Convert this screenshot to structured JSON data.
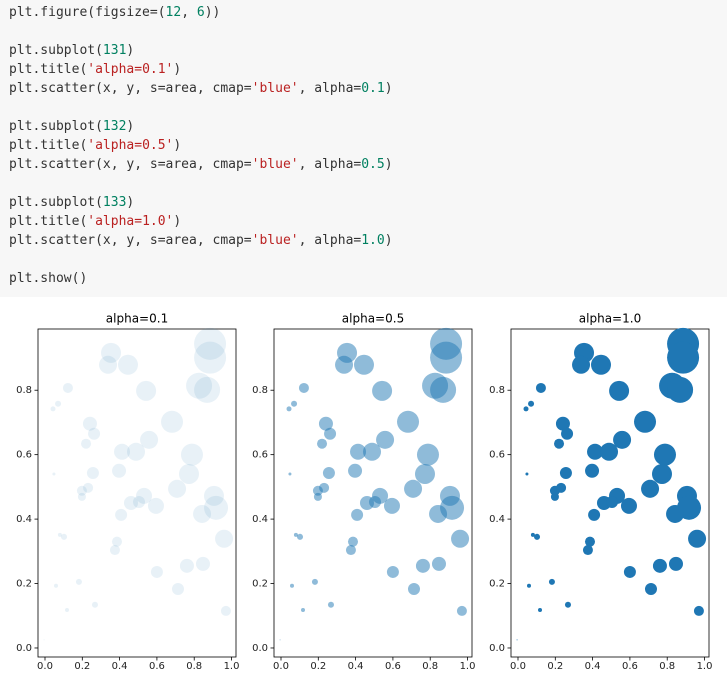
{
  "code": {
    "blocks": [
      [
        "plt.figure(figsize=(12, 6))"
      ],
      [
        "plt.subplot(131)",
        "plt.title('alpha=0.1')",
        "plt.scatter(x, y, s=area, cmap='blue', alpha=0.1)"
      ],
      [
        "plt.subplot(132)",
        "plt.title('alpha=0.5')",
        "plt.scatter(x, y, s=area, cmap='blue', alpha=0.5)"
      ],
      [
        "plt.subplot(133)",
        "plt.title('alpha=1.0')",
        "plt.scatter(x, y, s=area, cmap='blue', alpha=1.0)"
      ],
      [
        "plt.show()"
      ]
    ]
  },
  "chart_data": [
    {
      "type": "scatter",
      "title": "alpha=0.1",
      "color": "#1f77b4",
      "alpha": 0.1,
      "x": [
        0.354,
        0.338,
        0.445,
        0.123,
        0.07,
        0.043,
        0.542,
        0.885,
        0.885,
        0.826,
        0.869,
        0.241,
        0.263,
        0.681,
        0.22,
        0.413,
        0.488,
        0.558,
        0.788,
        0.048,
        0.257,
        0.397,
        0.772,
        0.198,
        0.231,
        0.198,
        0.708,
        0.531,
        0.461,
        0.504,
        0.595,
        0.906,
        0.917,
        0.842,
        0.408,
        0.08,
        0.102,
        0.386,
        0.375,
        0.96,
        0.6,
        0.761,
        0.847,
        0.713,
        0.182,
        0.059,
        0.268,
        0.118,
        0.97,
        -0.005
      ],
      "y": [
        0.916,
        0.879,
        0.879,
        0.807,
        0.758,
        0.742,
        0.798,
        0.944,
        0.901,
        0.814,
        0.801,
        0.696,
        0.665,
        0.702,
        0.634,
        0.609,
        0.609,
        0.646,
        0.6,
        0.54,
        0.543,
        0.55,
        0.54,
        0.488,
        0.497,
        0.469,
        0.494,
        0.472,
        0.45,
        0.453,
        0.441,
        0.472,
        0.435,
        0.416,
        0.413,
        0.351,
        0.345,
        0.33,
        0.304,
        0.339,
        0.236,
        0.255,
        0.261,
        0.183,
        0.205,
        0.193,
        0.134,
        0.118,
        0.115,
        0.025
      ],
      "sizes": [
        575,
        466,
        575,
        144,
        52,
        36,
        575,
        1472,
        1472,
        972,
        972,
        282,
        207,
        696,
        144,
        368,
        466,
        466,
        696,
        13,
        207,
        282,
        575,
        144,
        144,
        92,
        466,
        368,
        282,
        207,
        368,
        575,
        828,
        466,
        207,
        23,
        52,
        144,
        144,
        466,
        207,
        282,
        282,
        207,
        52,
        23,
        52,
        23,
        144,
        1.4
      ],
      "xlim": [
        -0.0375,
        1.024
      ],
      "ylim": [
        -0.028,
        0.99
      ],
      "xticks": [
        {
          "value": 0,
          "label": "0.0"
        },
        0.2,
        0.4,
        0.6,
        0.8,
        {
          "value": 1,
          "label": "1.0"
        }
      ],
      "yticks": [
        {
          "value": 0,
          "label": "0.0"
        },
        0.2,
        0.4,
        0.6,
        0.8
      ]
    },
    {
      "type": "scatter",
      "title": "alpha=0.5",
      "color": "#1f77b4",
      "alpha": 0.5,
      "x": [
        0.354,
        0.338,
        0.445,
        0.123,
        0.07,
        0.043,
        0.542,
        0.885,
        0.885,
        0.826,
        0.869,
        0.241,
        0.263,
        0.681,
        0.22,
        0.413,
        0.488,
        0.558,
        0.788,
        0.048,
        0.257,
        0.397,
        0.772,
        0.198,
        0.231,
        0.198,
        0.708,
        0.531,
        0.461,
        0.504,
        0.595,
        0.906,
        0.917,
        0.842,
        0.408,
        0.08,
        0.102,
        0.386,
        0.375,
        0.96,
        0.6,
        0.761,
        0.847,
        0.713,
        0.182,
        0.059,
        0.268,
        0.118,
        0.97,
        -0.005
      ],
      "y": [
        0.916,
        0.879,
        0.879,
        0.807,
        0.758,
        0.742,
        0.798,
        0.944,
        0.901,
        0.814,
        0.801,
        0.696,
        0.665,
        0.702,
        0.634,
        0.609,
        0.609,
        0.646,
        0.6,
        0.54,
        0.543,
        0.55,
        0.54,
        0.488,
        0.497,
        0.469,
        0.494,
        0.472,
        0.45,
        0.453,
        0.441,
        0.472,
        0.435,
        0.416,
        0.413,
        0.351,
        0.345,
        0.33,
        0.304,
        0.339,
        0.236,
        0.255,
        0.261,
        0.183,
        0.205,
        0.193,
        0.134,
        0.118,
        0.115,
        0.025
      ],
      "sizes": [
        575,
        466,
        575,
        144,
        52,
        36,
        575,
        1472,
        1472,
        972,
        972,
        282,
        207,
        696,
        144,
        368,
        466,
        466,
        696,
        13,
        207,
        282,
        575,
        144,
        144,
        92,
        466,
        368,
        282,
        207,
        368,
        575,
        828,
        466,
        207,
        23,
        52,
        144,
        144,
        466,
        207,
        282,
        282,
        207,
        52,
        23,
        52,
        23,
        144,
        1.4
      ],
      "xlim": [
        -0.0375,
        1.024
      ],
      "ylim": [
        -0.028,
        0.99
      ],
      "xticks": [
        {
          "value": 0,
          "label": "0.0"
        },
        0.2,
        0.4,
        0.6,
        0.8,
        {
          "value": 1,
          "label": "1.0"
        }
      ],
      "yticks": [
        {
          "value": 0,
          "label": "0.0"
        },
        0.2,
        0.4,
        0.6,
        0.8
      ]
    },
    {
      "type": "scatter",
      "title": "alpha=1.0",
      "color": "#1f77b4",
      "alpha": 1.0,
      "x": [
        0.354,
        0.338,
        0.445,
        0.123,
        0.07,
        0.043,
        0.542,
        0.885,
        0.885,
        0.826,
        0.869,
        0.241,
        0.263,
        0.681,
        0.22,
        0.413,
        0.488,
        0.558,
        0.788,
        0.048,
        0.257,
        0.397,
        0.772,
        0.198,
        0.231,
        0.198,
        0.708,
        0.531,
        0.461,
        0.504,
        0.595,
        0.906,
        0.917,
        0.842,
        0.408,
        0.08,
        0.102,
        0.386,
        0.375,
        0.96,
        0.6,
        0.761,
        0.847,
        0.713,
        0.182,
        0.059,
        0.268,
        0.118,
        0.97,
        -0.005
      ],
      "y": [
        0.916,
        0.879,
        0.879,
        0.807,
        0.758,
        0.742,
        0.798,
        0.944,
        0.901,
        0.814,
        0.801,
        0.696,
        0.665,
        0.702,
        0.634,
        0.609,
        0.609,
        0.646,
        0.6,
        0.54,
        0.543,
        0.55,
        0.54,
        0.488,
        0.497,
        0.469,
        0.494,
        0.472,
        0.45,
        0.453,
        0.441,
        0.472,
        0.435,
        0.416,
        0.413,
        0.351,
        0.345,
        0.33,
        0.304,
        0.339,
        0.236,
        0.255,
        0.261,
        0.183,
        0.205,
        0.193,
        0.134,
        0.118,
        0.115,
        0.025
      ],
      "sizes": [
        575,
        466,
        575,
        144,
        52,
        36,
        575,
        1472,
        1472,
        972,
        972,
        282,
        207,
        696,
        144,
        368,
        466,
        466,
        696,
        13,
        207,
        282,
        575,
        144,
        144,
        92,
        466,
        368,
        282,
        207,
        368,
        575,
        828,
        466,
        207,
        23,
        52,
        144,
        144,
        466,
        207,
        282,
        282,
        207,
        52,
        23,
        52,
        23,
        144,
        1.4
      ],
      "xlim": [
        -0.0375,
        1.024
      ],
      "ylim": [
        -0.028,
        0.99
      ],
      "xticks": [
        {
          "value": 0,
          "label": "0.0"
        },
        0.2,
        0.4,
        0.6,
        0.8,
        {
          "value": 1,
          "label": "1.0"
        }
      ],
      "yticks": [
        {
          "value": 0,
          "label": "0.0"
        },
        0.2,
        0.4,
        0.6,
        0.8
      ]
    }
  ]
}
